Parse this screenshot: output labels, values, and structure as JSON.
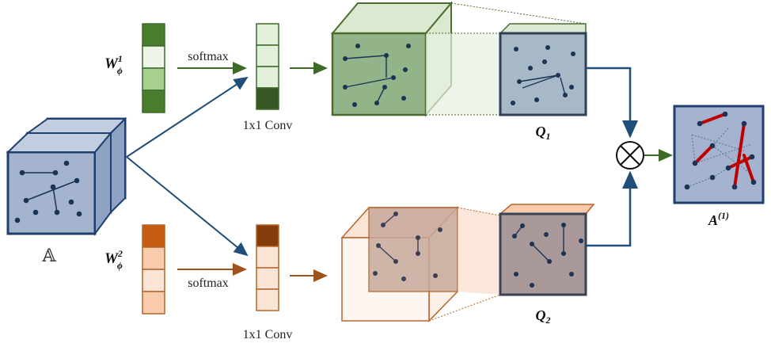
{
  "labels": {
    "input": "𝔸",
    "w1": "W",
    "w1_sub": "ϕ",
    "w1_sup": "1",
    "w2": "W",
    "w2_sub": "ϕ",
    "w2_sup": "2",
    "softmax_top": "softmax",
    "softmax_bottom": "softmax",
    "conv_top": "1x1 Conv",
    "conv_bottom": "1x1 Conv",
    "q1": "Q",
    "q1_sub": "1",
    "q2": "Q",
    "q2_sub": "2",
    "output": "A",
    "output_sup": "(1)"
  },
  "colors": {
    "blue_face": "#a4b4cf",
    "blue_edge": "#1f3f6f",
    "dark_node": "#1b3355",
    "green_edge": "#4a6d2f",
    "green_face": "#93b389",
    "green_dark": "#3e6b2a",
    "orange_edge": "#b8652a",
    "orange_dark": "#c45a11",
    "red_edge": "#c00000",
    "arrow_blue": "#1f4e79",
    "arrow_green": "#3d6b27",
    "arrow_orange": "#a0521d"
  },
  "weights_top": [
    "#4a7c2e",
    "#eef5e8",
    "#a8d08d",
    "#4a7c2e"
  ],
  "weights_bottom": [
    "#c55a11",
    "#f8cbad",
    "#fbe5d6",
    "#f8cbad"
  ],
  "conv_top_cells": [
    "#e2efd9",
    "#e2efd9",
    "#e2efd9",
    "#375623"
  ],
  "conv_bottom_cells": [
    "#843c0c",
    "#fbe5d6",
    "#fbe5d6",
    "#fbe5d6"
  ]
}
